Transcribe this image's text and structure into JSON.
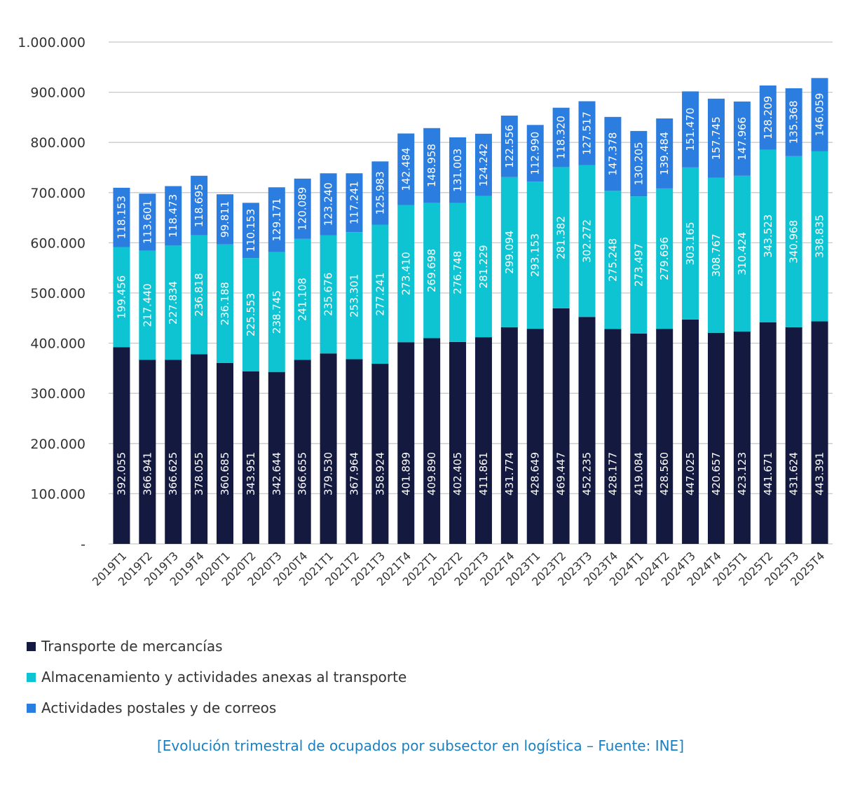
{
  "colors": {
    "transporte": "#13193f",
    "almacenamiento": "#0fc4d2",
    "postales": "#2b7de0",
    "grid": "#c8c8c8",
    "axis_text": "#333333",
    "caption": "#1a7fc1"
  },
  "caption": "[Evolución trimestral de ocupados por subsector en logística – Fuente: INE]",
  "legend": [
    {
      "label": "Transporte de mercancías",
      "color_key": "transporte"
    },
    {
      "label": "Almacenamiento y actividades anexas al transporte",
      "color_key": "almacenamiento"
    },
    {
      "label": "Actividades postales y de correos",
      "color_key": "postales"
    }
  ],
  "chart_data": {
    "type": "bar",
    "stacked": true,
    "title": "",
    "xlabel": "",
    "ylabel": "",
    "ylim": [
      0,
      1000000
    ],
    "yticks": [
      0,
      100000,
      200000,
      300000,
      400000,
      500000,
      600000,
      700000,
      800000,
      900000,
      1000000
    ],
    "ytick_labels": [
      "-",
      "100.000",
      "200.000",
      "300.000",
      "400.000",
      "500.000",
      "600.000",
      "700.000",
      "800.000",
      "900.000",
      "1.000.000"
    ],
    "grid": true,
    "legend_position": "bottom",
    "categories": [
      "2019T1",
      "2019T2",
      "2019T3",
      "2019T4",
      "2020T1",
      "2020T2",
      "2020T3",
      "2020T4",
      "2021T1",
      "2021T2",
      "2021T3",
      "2021T4",
      "2022T1",
      "2022T2",
      "2022T3",
      "2022T4",
      "2023T1",
      "2023T2",
      "2023T3",
      "2023T4",
      "2024T1",
      "2024T2",
      "2024T3",
      "2024T4",
      "2025T1",
      "2025T2",
      "2025T3",
      "2025T4"
    ],
    "series": [
      {
        "name": "Transporte de mercancías",
        "values": [
          392055,
          366941,
          366625,
          378055,
          360685,
          343951,
          342644,
          366655,
          379530,
          367964,
          358924,
          401899,
          409890,
          402405,
          411861,
          431774,
          428649,
          469447,
          452235,
          428177,
          419084,
          428560,
          447025,
          420657,
          423123,
          441671,
          431624,
          443391
        ],
        "labels": [
          "392.055",
          "366.941",
          "366.625",
          "378.055",
          "360.685",
          "343.951",
          "342.644",
          "366.655",
          "379.530",
          "367.964",
          "358.924",
          "401.899",
          "409.890",
          "402.405",
          "411.861",
          "431.774",
          "428.649",
          "469.447",
          "452.235",
          "428.177",
          "419.084",
          "428.560",
          "447.025",
          "420.657",
          "423.123",
          "441.671",
          "431.624",
          "443.391"
        ]
      },
      {
        "name": "Almacenamiento y actividades anexas al transporte",
        "values": [
          199456,
          217440,
          227834,
          236818,
          236188,
          225553,
          238745,
          241108,
          235676,
          253301,
          277241,
          273410,
          269698,
          276748,
          281229,
          299094,
          293153,
          281382,
          302272,
          275248,
          273497,
          279696,
          303165,
          308767,
          310424,
          343523,
          340968,
          338835
        ],
        "labels": [
          "199.456",
          "217.440",
          "227.834",
          "236.818",
          "236.188",
          "225.553",
          "238.745",
          "241.108",
          "235.676",
          "253.301",
          "277.241",
          "273.410",
          "269.698",
          "276.748",
          "281.229",
          "299.094",
          "293.153",
          "281.382",
          "302.272",
          "275.248",
          "273.497",
          "279.696",
          "303.165",
          "308.767",
          "310.424",
          "343.523",
          "340.968",
          "338.835"
        ]
      },
      {
        "name": "Actividades postales y de correos",
        "values": [
          118153,
          113601,
          118473,
          118695,
          99811,
          110153,
          129171,
          120089,
          123240,
          117241,
          125983,
          142484,
          148958,
          131003,
          124242,
          122556,
          112990,
          118320,
          127517,
          147378,
          130205,
          139484,
          151470,
          157745,
          147966,
          128209,
          135368,
          146059
        ],
        "labels": [
          "118.153",
          "113.601",
          "118.473",
          "118.695",
          "99.811",
          "110.153",
          "129.171",
          "120.089",
          "123.240",
          "117.241",
          "125.983",
          "142.484",
          "148.958",
          "131.003",
          "124.242",
          "122.556",
          "112.990",
          "118.320",
          "127.517",
          "147.378",
          "130.205",
          "139.484",
          "151.470",
          "157.745",
          "147.966",
          "128.209",
          "135.368",
          "146.059"
        ]
      }
    ]
  }
}
